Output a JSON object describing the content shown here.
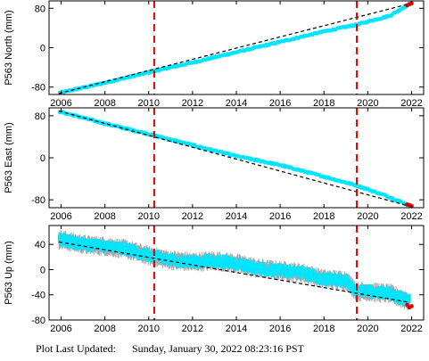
{
  "footer": {
    "label": "Plot Last Updated:",
    "value": "Sunday, January 30, 2022 08:23:16 PST"
  },
  "colors": {
    "data": "#00e5ff",
    "error_bar": "#a8a8a8",
    "trend": "#000000",
    "event_line": "#e00000",
    "recent_points": "#dd0000"
  },
  "chart_data": [
    {
      "type": "scatter",
      "ylabel": "P563 North (mm)",
      "xlim": [
        2005.45,
        2022.55
      ],
      "ylim": [
        -95,
        95
      ],
      "xticks": [
        2006,
        2008,
        2010,
        2012,
        2014,
        2016,
        2018,
        2020,
        2022
      ],
      "yticks": [
        -80,
        0,
        80
      ],
      "series": [
        {
          "role": "daily positions",
          "x": [
            2005.9,
            2008.0,
            2010.0,
            2012.0,
            2014.0,
            2016.0,
            2018.0,
            2019.5,
            2021.0,
            2021.9
          ],
          "y": [
            -92,
            -71,
            -50,
            -30,
            -9,
            12,
            33,
            47,
            65,
            89
          ]
        },
        {
          "role": "trend",
          "x": [
            2005.9,
            2021.9
          ],
          "y": [
            -93,
            89
          ]
        }
      ],
      "event_lines_x": [
        2010.25,
        2019.5
      ],
      "recent_points": {
        "x": [
          2021.8,
          2021.9,
          2022.0
        ],
        "y": [
          86,
          88,
          90
        ]
      }
    },
    {
      "type": "scatter",
      "ylabel": "P563 East (mm)",
      "xlim": [
        2005.45,
        2022.55
      ],
      "ylim": [
        -95,
        95
      ],
      "xticks": [
        2006,
        2008,
        2010,
        2012,
        2014,
        2016,
        2018,
        2020,
        2022
      ],
      "yticks": [
        -80,
        0,
        80
      ],
      "series": [
        {
          "role": "daily positions",
          "x": [
            2005.9,
            2008.0,
            2010.0,
            2012.0,
            2014.0,
            2016.0,
            2018.0,
            2019.5,
            2021.0,
            2021.9
          ],
          "y": [
            88,
            65,
            45,
            24,
            3,
            -14,
            -36,
            -53,
            -75,
            -91
          ]
        },
        {
          "role": "trend",
          "x": [
            2005.9,
            2021.9
          ],
          "y": [
            89,
            -92
          ]
        }
      ],
      "event_lines_x": [
        2010.25,
        2019.5
      ],
      "recent_points": {
        "x": [
          2021.8,
          2021.9,
          2022.0
        ],
        "y": [
          -89,
          -90,
          -92
        ]
      }
    },
    {
      "type": "scatter",
      "ylabel": "P563 Up (mm)",
      "xlim": [
        2005.45,
        2022.55
      ],
      "ylim": [
        -80,
        70
      ],
      "xticks": [
        2006,
        2008,
        2010,
        2012,
        2014,
        2016,
        2018,
        2020,
        2022
      ],
      "yticks": [
        -80,
        -40,
        0,
        40
      ],
      "series": [
        {
          "role": "daily positions",
          "x": [
            2005.9,
            2007.0,
            2008.0,
            2009.0,
            2010.0,
            2011.0,
            2012.0,
            2013.0,
            2014.0,
            2015.0,
            2016.0,
            2017.0,
            2018.0,
            2019.0,
            2019.5,
            2020.0,
            2021.0,
            2021.5,
            2021.9
          ],
          "y": [
            48,
            40,
            37,
            32,
            22,
            15,
            12,
            14,
            10,
            2,
            -2,
            -5,
            -15,
            -17,
            -35,
            -35,
            -38,
            -45,
            -50
          ]
        },
        {
          "role": "trend",
          "x": [
            2005.9,
            2021.9
          ],
          "y": [
            44,
            -52
          ]
        }
      ],
      "error_bar_mm": 12,
      "event_lines_x": [
        2010.25,
        2019.5
      ],
      "recent_points": {
        "x": [
          2021.8,
          2021.9,
          2022.0
        ],
        "y": [
          -56,
          -60,
          -58
        ]
      }
    }
  ]
}
